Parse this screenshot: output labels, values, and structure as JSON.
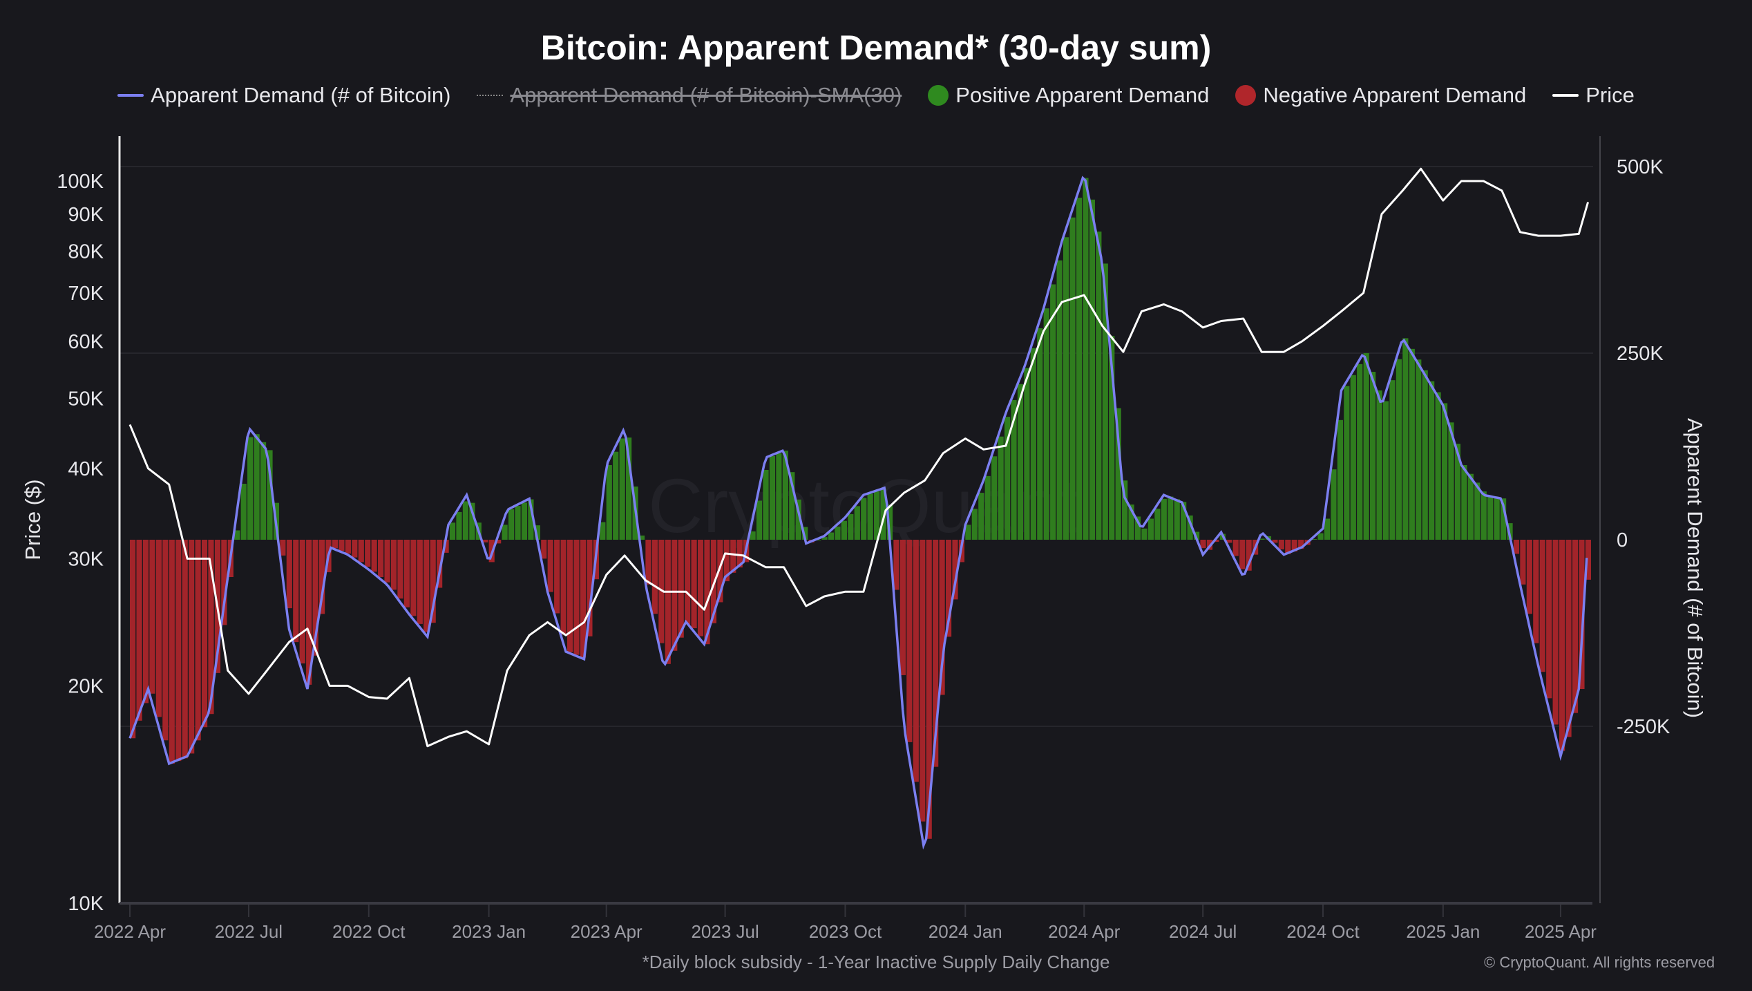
{
  "chart_data": {
    "type": "bar+line",
    "title": "Bitcoin: Apparent Demand* (30-day sum)",
    "footnote": "*Daily block subsidy - 1-Year Inactive Supply Daily Change",
    "copyright": "© CryptoQuant. All rights reserved",
    "watermark": "CryptoQuant",
    "legend": [
      {
        "label": "Apparent Demand (# of Bitcoin)",
        "marker": "line",
        "color": "#7b7ff0",
        "hidden": false
      },
      {
        "label": "Apparent Demand (# of Bitcoin)-SMA(30)",
        "marker": "dotted-line",
        "color": "#888888",
        "hidden": true
      },
      {
        "label": "Positive Apparent Demand",
        "marker": "dot",
        "color": "#2f7d1e",
        "hidden": false
      },
      {
        "label": "Negative Apparent Demand",
        "marker": "dot",
        "color": "#a3242a",
        "hidden": false
      },
      {
        "label": "Price",
        "marker": "line",
        "color": "#ffffff",
        "hidden": false
      }
    ],
    "legend_placement": "top-center",
    "left_axis": {
      "label": "Price ($)",
      "scale": "log",
      "range": [
        10000,
        120000
      ],
      "ticks": [
        {
          "v": 10000,
          "t": "10K"
        },
        {
          "v": 20000,
          "t": "20K"
        },
        {
          "v": 30000,
          "t": "30K"
        },
        {
          "v": 40000,
          "t": "40K"
        },
        {
          "v": 50000,
          "t": "50K"
        },
        {
          "v": 60000,
          "t": "60K"
        },
        {
          "v": 70000,
          "t": "70K"
        },
        {
          "v": 80000,
          "t": "80K"
        },
        {
          "v": 90000,
          "t": "90K"
        },
        {
          "v": 100000,
          "t": "100K"
        }
      ]
    },
    "right_axis": {
      "label": "Apparent Demand (# of Bitcoin)",
      "scale": "linear",
      "range": [
        -550000,
        570000
      ],
      "ticks": [
        {
          "v": 500000,
          "t": "500K"
        },
        {
          "v": 250000,
          "t": "250K"
        },
        {
          "v": 0,
          "t": "0"
        },
        {
          "v": -250000,
          "t": "-250K"
        }
      ]
    },
    "grid": true,
    "x_ticks": [
      {
        "d": "2022-04-01",
        "t": "2022 Apr"
      },
      {
        "d": "2022-07-01",
        "t": "2022 Jul"
      },
      {
        "d": "2022-10-01",
        "t": "2022 Oct"
      },
      {
        "d": "2023-01-01",
        "t": "2023 Jan"
      },
      {
        "d": "2023-04-01",
        "t": "2023 Apr"
      },
      {
        "d": "2023-07-01",
        "t": "2023 Jul"
      },
      {
        "d": "2023-10-01",
        "t": "2023 Oct"
      },
      {
        "d": "2024-01-01",
        "t": "2024 Jan"
      },
      {
        "d": "2024-04-01",
        "t": "2024 Apr"
      },
      {
        "d": "2024-07-01",
        "t": "2024 Jul"
      },
      {
        "d": "2024-10-01",
        "t": "2024 Oct"
      },
      {
        "d": "2025-01-01",
        "t": "2025 Jan"
      },
      {
        "d": "2025-04-01",
        "t": "2025 Apr"
      }
    ],
    "x_range": [
      "2022-03-27",
      "2025-05-05"
    ],
    "demand": {
      "name": "Apparent Demand (# of Bitcoin)",
      "dates": [
        "2022-04-01",
        "2022-04-15",
        "2022-05-01",
        "2022-05-15",
        "2022-06-01",
        "2022-06-15",
        "2022-07-01",
        "2022-07-15",
        "2022-08-01",
        "2022-08-15",
        "2022-09-01",
        "2022-09-15",
        "2022-10-01",
        "2022-10-15",
        "2022-11-01",
        "2022-11-15",
        "2022-12-01",
        "2022-12-15",
        "2023-01-01",
        "2023-01-15",
        "2023-02-01",
        "2023-02-15",
        "2023-03-01",
        "2023-03-15",
        "2023-04-01",
        "2023-04-15",
        "2023-05-01",
        "2023-05-15",
        "2023-06-01",
        "2023-06-15",
        "2023-07-01",
        "2023-07-15",
        "2023-08-01",
        "2023-08-15",
        "2023-09-01",
        "2023-09-15",
        "2023-10-01",
        "2023-10-15",
        "2023-11-01",
        "2023-11-15",
        "2023-12-01",
        "2023-12-15",
        "2024-01-01",
        "2024-01-15",
        "2024-02-01",
        "2024-02-15",
        "2024-03-01",
        "2024-03-15",
        "2024-04-01",
        "2024-04-15",
        "2024-05-01",
        "2024-05-15",
        "2024-06-01",
        "2024-06-15",
        "2024-07-01",
        "2024-07-15",
        "2024-08-01",
        "2024-08-15",
        "2024-09-01",
        "2024-09-15",
        "2024-10-01",
        "2024-10-15",
        "2024-11-01",
        "2024-11-15",
        "2024-12-01",
        "2024-12-15",
        "2025-01-01",
        "2025-01-15",
        "2025-02-01",
        "2025-02-15",
        "2025-03-01",
        "2025-03-15",
        "2025-04-01",
        "2025-04-15",
        "2025-04-22"
      ],
      "values": [
        -266000,
        -200000,
        -300000,
        -290000,
        -230000,
        -50000,
        150000,
        120000,
        -120000,
        -200000,
        -10000,
        -20000,
        -40000,
        -60000,
        -100000,
        -130000,
        20000,
        60000,
        -30000,
        40000,
        55000,
        -70000,
        -150000,
        -160000,
        100000,
        150000,
        -60000,
        -170000,
        -110000,
        -140000,
        -50000,
        -30000,
        110000,
        120000,
        -5000,
        5000,
        30000,
        60000,
        70000,
        -250000,
        -420000,
        -150000,
        20000,
        80000,
        170000,
        230000,
        310000,
        400000,
        490000,
        370000,
        60000,
        15000,
        60000,
        50000,
        -20000,
        10000,
        -50000,
        10000,
        -20000,
        -10000,
        15000,
        200000,
        250000,
        180000,
        270000,
        230000,
        180000,
        100000,
        60000,
        55000,
        -60000,
        -170000,
        -290000,
        -200000,
        5000
      ]
    },
    "price": {
      "name": "Price",
      "dates": [
        "2022-04-01",
        "2022-04-15",
        "2022-05-01",
        "2022-05-15",
        "2022-06-01",
        "2022-06-15",
        "2022-07-01",
        "2022-07-15",
        "2022-08-01",
        "2022-08-15",
        "2022-09-01",
        "2022-09-15",
        "2022-10-01",
        "2022-10-15",
        "2022-11-01",
        "2022-11-15",
        "2022-12-01",
        "2022-12-15",
        "2023-01-01",
        "2023-01-15",
        "2023-02-01",
        "2023-02-15",
        "2023-03-01",
        "2023-03-15",
        "2023-04-01",
        "2023-04-15",
        "2023-05-01",
        "2023-05-15",
        "2023-06-01",
        "2023-06-15",
        "2023-07-01",
        "2023-07-15",
        "2023-08-01",
        "2023-08-15",
        "2023-09-01",
        "2023-09-15",
        "2023-10-01",
        "2023-10-15",
        "2023-11-01",
        "2023-11-15",
        "2023-12-01",
        "2023-12-15",
        "2024-01-01",
        "2024-01-15",
        "2024-02-01",
        "2024-02-15",
        "2024-03-01",
        "2024-03-15",
        "2024-04-01",
        "2024-04-15",
        "2024-05-01",
        "2024-05-15",
        "2024-06-01",
        "2024-06-15",
        "2024-07-01",
        "2024-07-15",
        "2024-08-01",
        "2024-08-15",
        "2024-09-01",
        "2024-09-15",
        "2024-10-01",
        "2024-10-15",
        "2024-11-01",
        "2024-11-15",
        "2024-12-01",
        "2024-12-15",
        "2025-01-01",
        "2025-01-15",
        "2025-02-01",
        "2025-02-15",
        "2025-03-01",
        "2025-03-15",
        "2025-04-01",
        "2025-04-15",
        "2025-04-22"
      ],
      "values": [
        46000,
        40000,
        38000,
        30000,
        30000,
        21000,
        19500,
        21000,
        23000,
        24000,
        20000,
        20000,
        19300,
        19200,
        20500,
        16500,
        17000,
        17300,
        16600,
        21000,
        23500,
        24500,
        23500,
        24500,
        28500,
        30300,
        28000,
        27000,
        27000,
        25500,
        30500,
        30300,
        29200,
        29200,
        25800,
        26600,
        27000,
        27000,
        35000,
        37000,
        38500,
        42000,
        44000,
        42500,
        43000,
        52000,
        62000,
        68000,
        69500,
        63000,
        58000,
        66000,
        67500,
        66000,
        62700,
        64000,
        64500,
        58000,
        58000,
        60000,
        63000,
        66000,
        70000,
        90000,
        97000,
        104000,
        94000,
        100000,
        100000,
        97000,
        85000,
        84000,
        84000,
        84500,
        93500
      ]
    }
  }
}
